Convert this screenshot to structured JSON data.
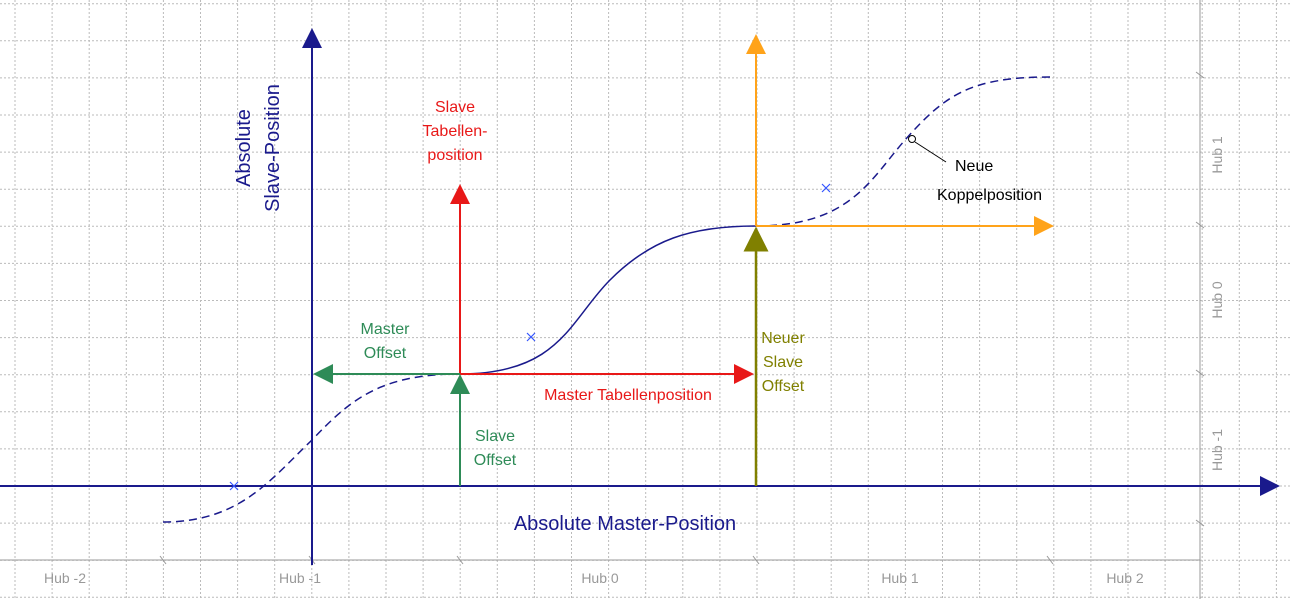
{
  "axes": {
    "x_label": "Absolute Master-Position",
    "y_label": [
      "Absolute",
      "Slave-Position"
    ]
  },
  "labels": {
    "slave_table": [
      "Slave",
      "Tabellen-",
      "position"
    ],
    "master_offset": [
      "Master",
      "Offset"
    ],
    "master_table": "Master Tabellenposition",
    "slave_offset": [
      "Slave",
      "Offset"
    ],
    "new_slave_offset": [
      "Neuer",
      "Slave",
      "Offset"
    ],
    "new_coupling": [
      "Neue",
      "Koppelposition"
    ]
  },
  "bottom_ruler": [
    "Hub -2",
    "Hub -1",
    "Hub 0",
    "Hub 1",
    "Hub 2"
  ],
  "right_ruler": [
    "Hub -1",
    "Hub 0",
    "Hub 1"
  ]
}
